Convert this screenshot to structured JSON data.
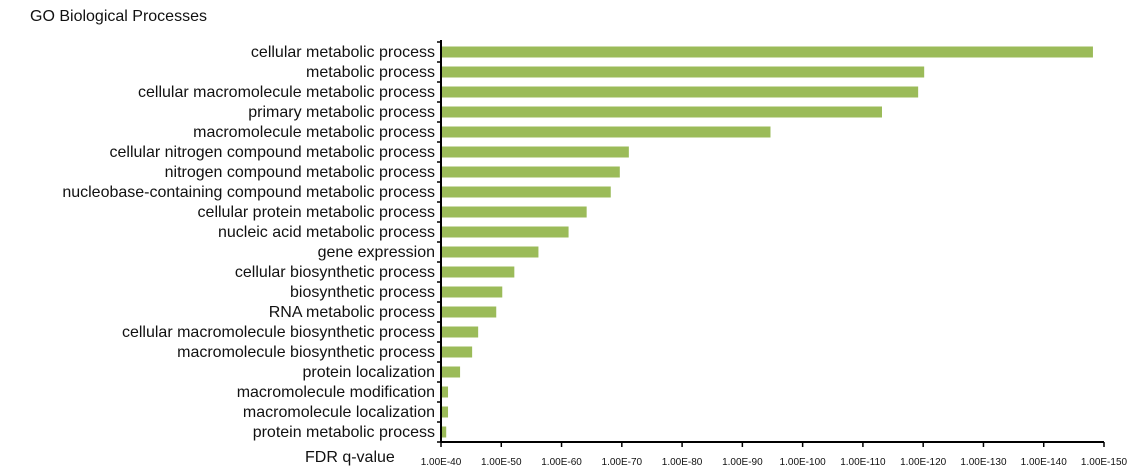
{
  "chart_data": {
    "type": "bar",
    "orientation": "horizontal",
    "title": "GO Biological Processes",
    "xlabel": "FDR q-value",
    "ylabel": "",
    "xscale": "log",
    "xlim_exponent": [
      -40,
      -150
    ],
    "x_tick_labels": [
      "1.00E-40",
      "1.00E-50",
      "1.00E-60",
      "1.00E-70",
      "1.00E-80",
      "1.00E-90",
      "1.00E-100",
      "1.00E-110",
      "1.00E-120",
      "1.00E-130",
      "1.00E-140",
      "1.00E-150"
    ],
    "categories": [
      "cellular metabolic process",
      "metabolic process",
      "cellular macromolecule metabolic process",
      "primary metabolic process",
      "macromolecule metabolic process",
      "cellular nitrogen compound metabolic process",
      "nitrogen compound metabolic process",
      "nucleobase-containing compound metabolic process",
      "cellular protein metabolic process",
      "nucleic acid metabolic process",
      "gene expression",
      "cellular biosynthetic process",
      "biosynthetic process",
      "RNA metabolic process",
      "cellular macromolecule biosynthetic process",
      "macromolecule biosynthetic process",
      "protein localization",
      "macromolecule modification",
      "macromolecule localization",
      "protein metabolic process"
    ],
    "values_exponent": [
      -148,
      -120,
      -119,
      -113,
      -94.5,
      -71,
      -69.5,
      -68,
      -64,
      -61,
      -56,
      -52,
      -50,
      -49,
      -46,
      -45,
      -43,
      -41,
      -41,
      -40.7
    ],
    "bar_color": "#9bbb59",
    "grid": false,
    "legend": "none"
  }
}
